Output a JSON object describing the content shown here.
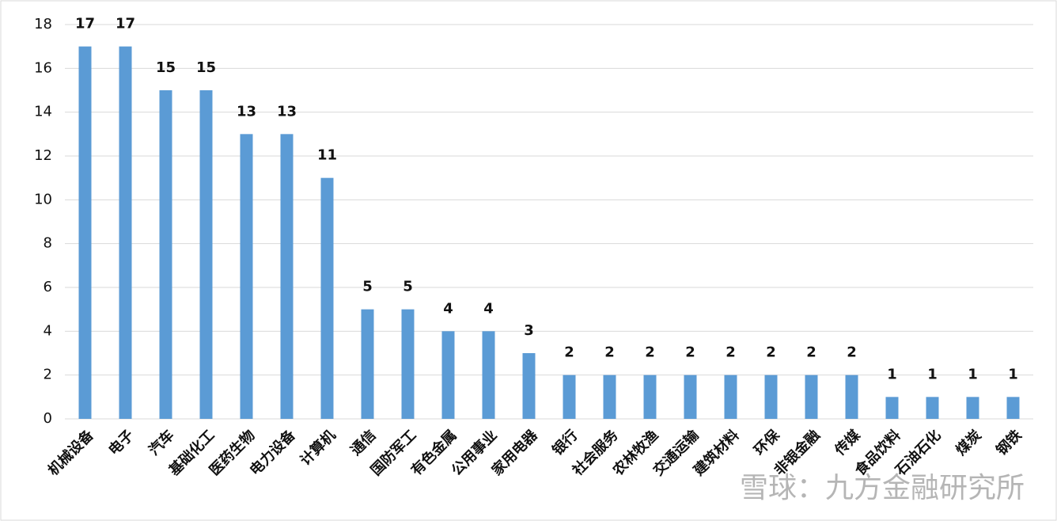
{
  "chart_data": {
    "type": "bar",
    "categories": [
      "机械设备",
      "电子",
      "汽车",
      "基础化工",
      "医药生物",
      "电力设备",
      "计算机",
      "通信",
      "国防军工",
      "有色金属",
      "公用事业",
      "家用电器",
      "银行",
      "社会服务",
      "农林牧渔",
      "交通运输",
      "建筑材料",
      "环保",
      "非银金融",
      "传媒",
      "食品饮料",
      "石油石化",
      "煤炭",
      "钢铁"
    ],
    "values": [
      17,
      17,
      15,
      15,
      13,
      13,
      11,
      5,
      5,
      4,
      4,
      3,
      2,
      2,
      2,
      2,
      2,
      2,
      2,
      2,
      1,
      1,
      1,
      1
    ],
    "color": "#5b9bd5",
    "ylim": [
      0,
      18
    ],
    "yticks": [
      0,
      2,
      4,
      6,
      8,
      10,
      12,
      14,
      16,
      18
    ],
    "grid": true
  },
  "watermark": "雪球：九方金融研究所"
}
